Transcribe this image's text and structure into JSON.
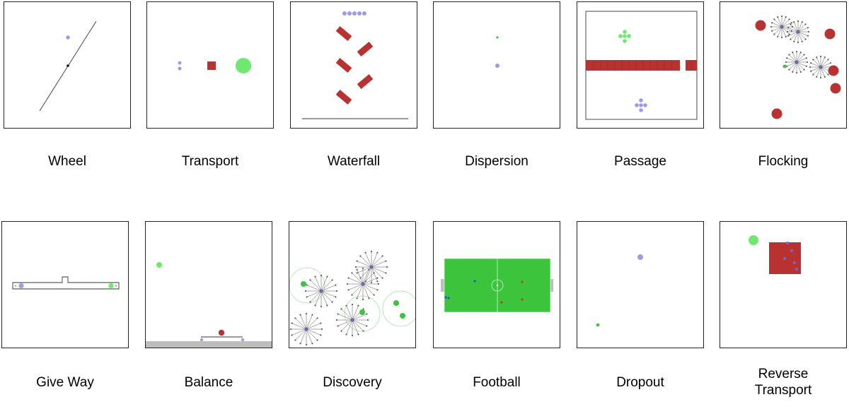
{
  "panels": [
    {
      "label": "Wheel"
    },
    {
      "label": "Transport"
    },
    {
      "label": "Waterfall"
    },
    {
      "label": "Dispersion"
    },
    {
      "label": "Passage"
    },
    {
      "label": "Flocking"
    },
    {
      "label": "Give Way"
    },
    {
      "label": "Balance"
    },
    {
      "label": "Discovery"
    },
    {
      "label": "Football"
    },
    {
      "label": "Dropout"
    },
    {
      "label": "Reverse",
      "label2": "Transport"
    }
  ],
  "colors": {
    "agent": "#9b9be8",
    "goal": "#6ee86e",
    "obstacle": "#b83232",
    "field": "#3cc43c",
    "floor": "#bdbdbd",
    "line": "#333333"
  }
}
